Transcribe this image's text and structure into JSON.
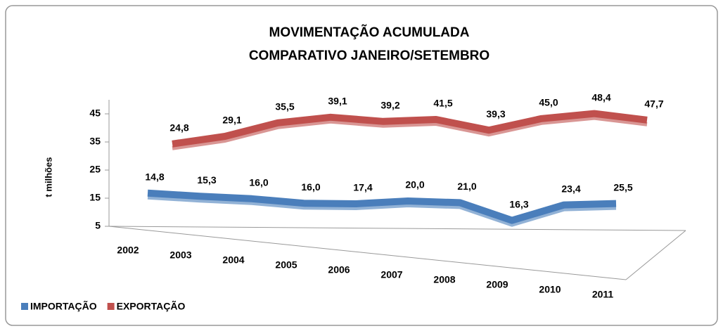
{
  "chart_data": {
    "type": "line3d",
    "title": [
      "MOVIMENTAÇÃO ACUMULADA",
      "COMPARATIVO JANEIRO/SETEMBRO"
    ],
    "y_label": "t milhões",
    "categories": [
      "2002",
      "2003",
      "2004",
      "2005",
      "2006",
      "2007",
      "2008",
      "2009",
      "2010",
      "2011"
    ],
    "ylim": [
      5,
      50
    ],
    "yticks": [
      5,
      15,
      25,
      35,
      45
    ],
    "legend": "bottom-left",
    "series": [
      {
        "name": "IMPORTAÇÃO",
        "color": "#4a7ebb",
        "values": [
          14.8,
          15.3,
          16.0,
          16.0,
          17.4,
          20.0,
          21.0,
          16.3,
          23.4,
          25.5
        ],
        "value_labels": [
          "14,8",
          "15,3",
          "16,0",
          "16,0",
          "17,4",
          "20,0",
          "21,0",
          "16,3",
          "23,4",
          "25,5"
        ]
      },
      {
        "name": "EXPORTAÇÃO",
        "color": "#c0504d",
        "values": [
          24.8,
          29.1,
          35.5,
          39.1,
          39.2,
          41.5,
          39.3,
          45.0,
          48.4,
          47.7
        ],
        "value_labels": [
          "24,8",
          "29,1",
          "35,5",
          "39,1",
          "39,2",
          "41,5",
          "39,3",
          "45,0",
          "48,4",
          "47,7"
        ]
      }
    ]
  }
}
